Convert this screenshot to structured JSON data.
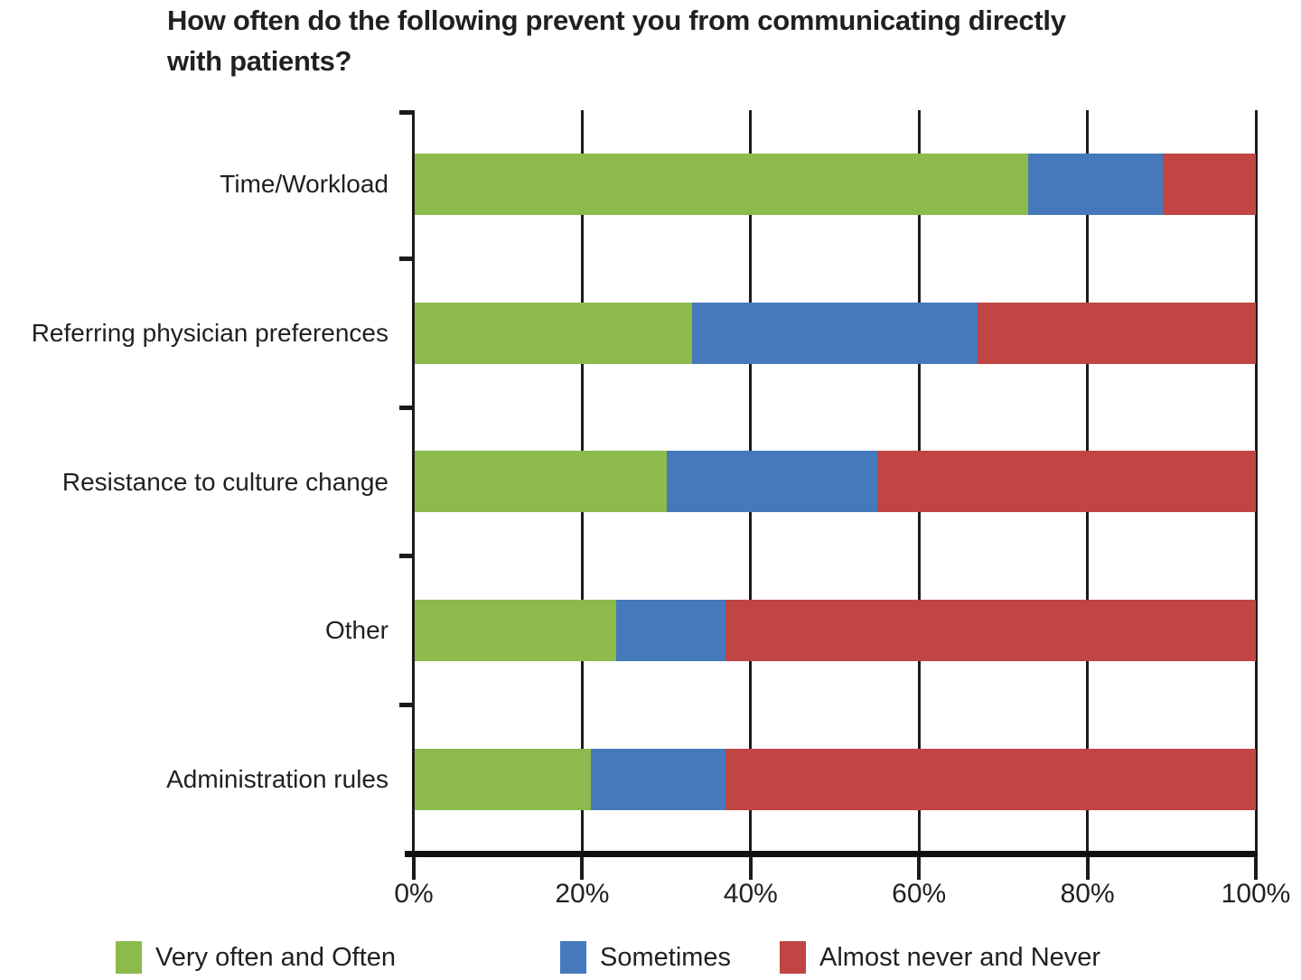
{
  "chart_data": {
    "type": "bar",
    "variant": "horizontal-stacked",
    "title": "How often do the following prevent you from communicating directly with patients?",
    "categories": [
      "Time/Workload",
      "Referring physician preferences",
      "Resistance to culture change",
      "Other",
      "Administration rules"
    ],
    "series": [
      {
        "name": "Very often and Often",
        "color": "#8cba4c",
        "values": [
          73,
          33,
          30,
          24,
          21
        ]
      },
      {
        "name": "Sometimes",
        "color": "#4579bc",
        "values": [
          16,
          34,
          25,
          13,
          16
        ]
      },
      {
        "name": "Almost never and Never",
        "color": "#c04543",
        "values": [
          11,
          33,
          45,
          63,
          63
        ]
      }
    ],
    "x_axis": {
      "range": [
        0,
        100
      ],
      "tick_values": [
        0,
        20,
        40,
        60,
        80,
        100
      ],
      "tick_labels": [
        "0%",
        "20%",
        "40%",
        "60%",
        "80%",
        "100%"
      ],
      "grid": true
    },
    "legend": {
      "position": "bottom",
      "entries": [
        "Very often and Often",
        "Sometimes",
        "Almost never and Never"
      ]
    },
    "colors": {
      "axis": "#1c1a1b",
      "text": "#231f20",
      "background": "#ffffff"
    }
  }
}
